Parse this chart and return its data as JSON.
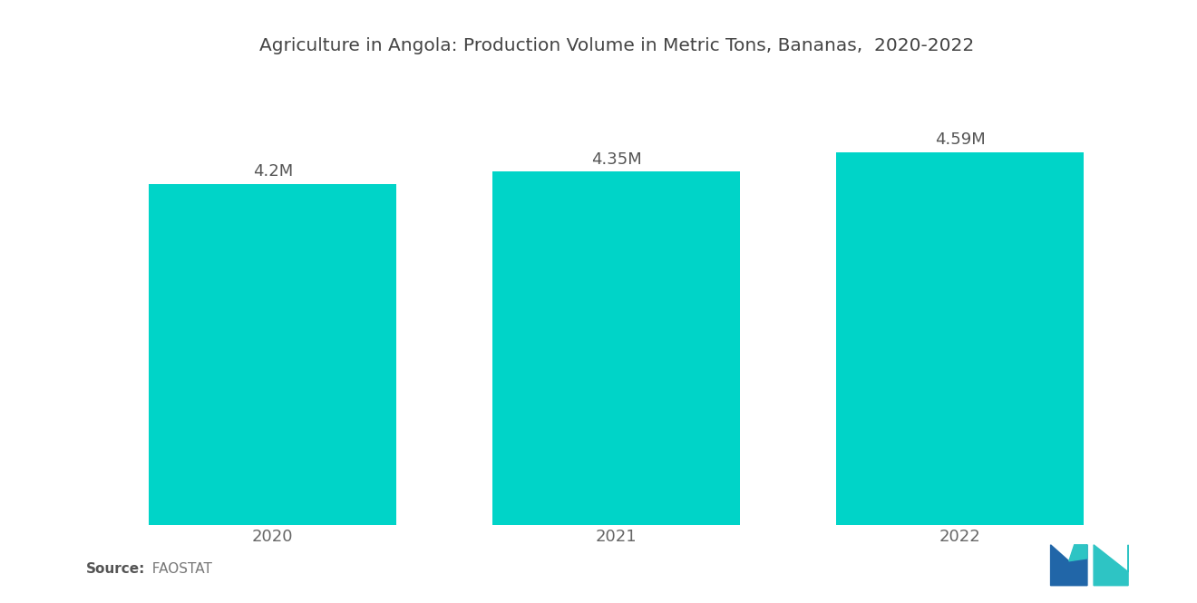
{
  "title": "Agriculture in Angola: Production Volume in Metric Tons, Bananas,  2020-2022",
  "categories": [
    "2020",
    "2021",
    "2022"
  ],
  "values": [
    4.2,
    4.35,
    4.59
  ],
  "labels": [
    "4.2M",
    "4.35M",
    "4.59M"
  ],
  "bar_color": "#00D4C8",
  "background_color": "#ffffff",
  "title_fontsize": 14.5,
  "label_fontsize": 13,
  "tick_fontsize": 13,
  "source_bold": "Source:",
  "source_normal": "  FAOSTAT",
  "ylim": [
    0,
    5.5
  ],
  "bar_width": 0.72,
  "title_color": "#444444",
  "tick_color": "#666666",
  "label_color": "#555555"
}
